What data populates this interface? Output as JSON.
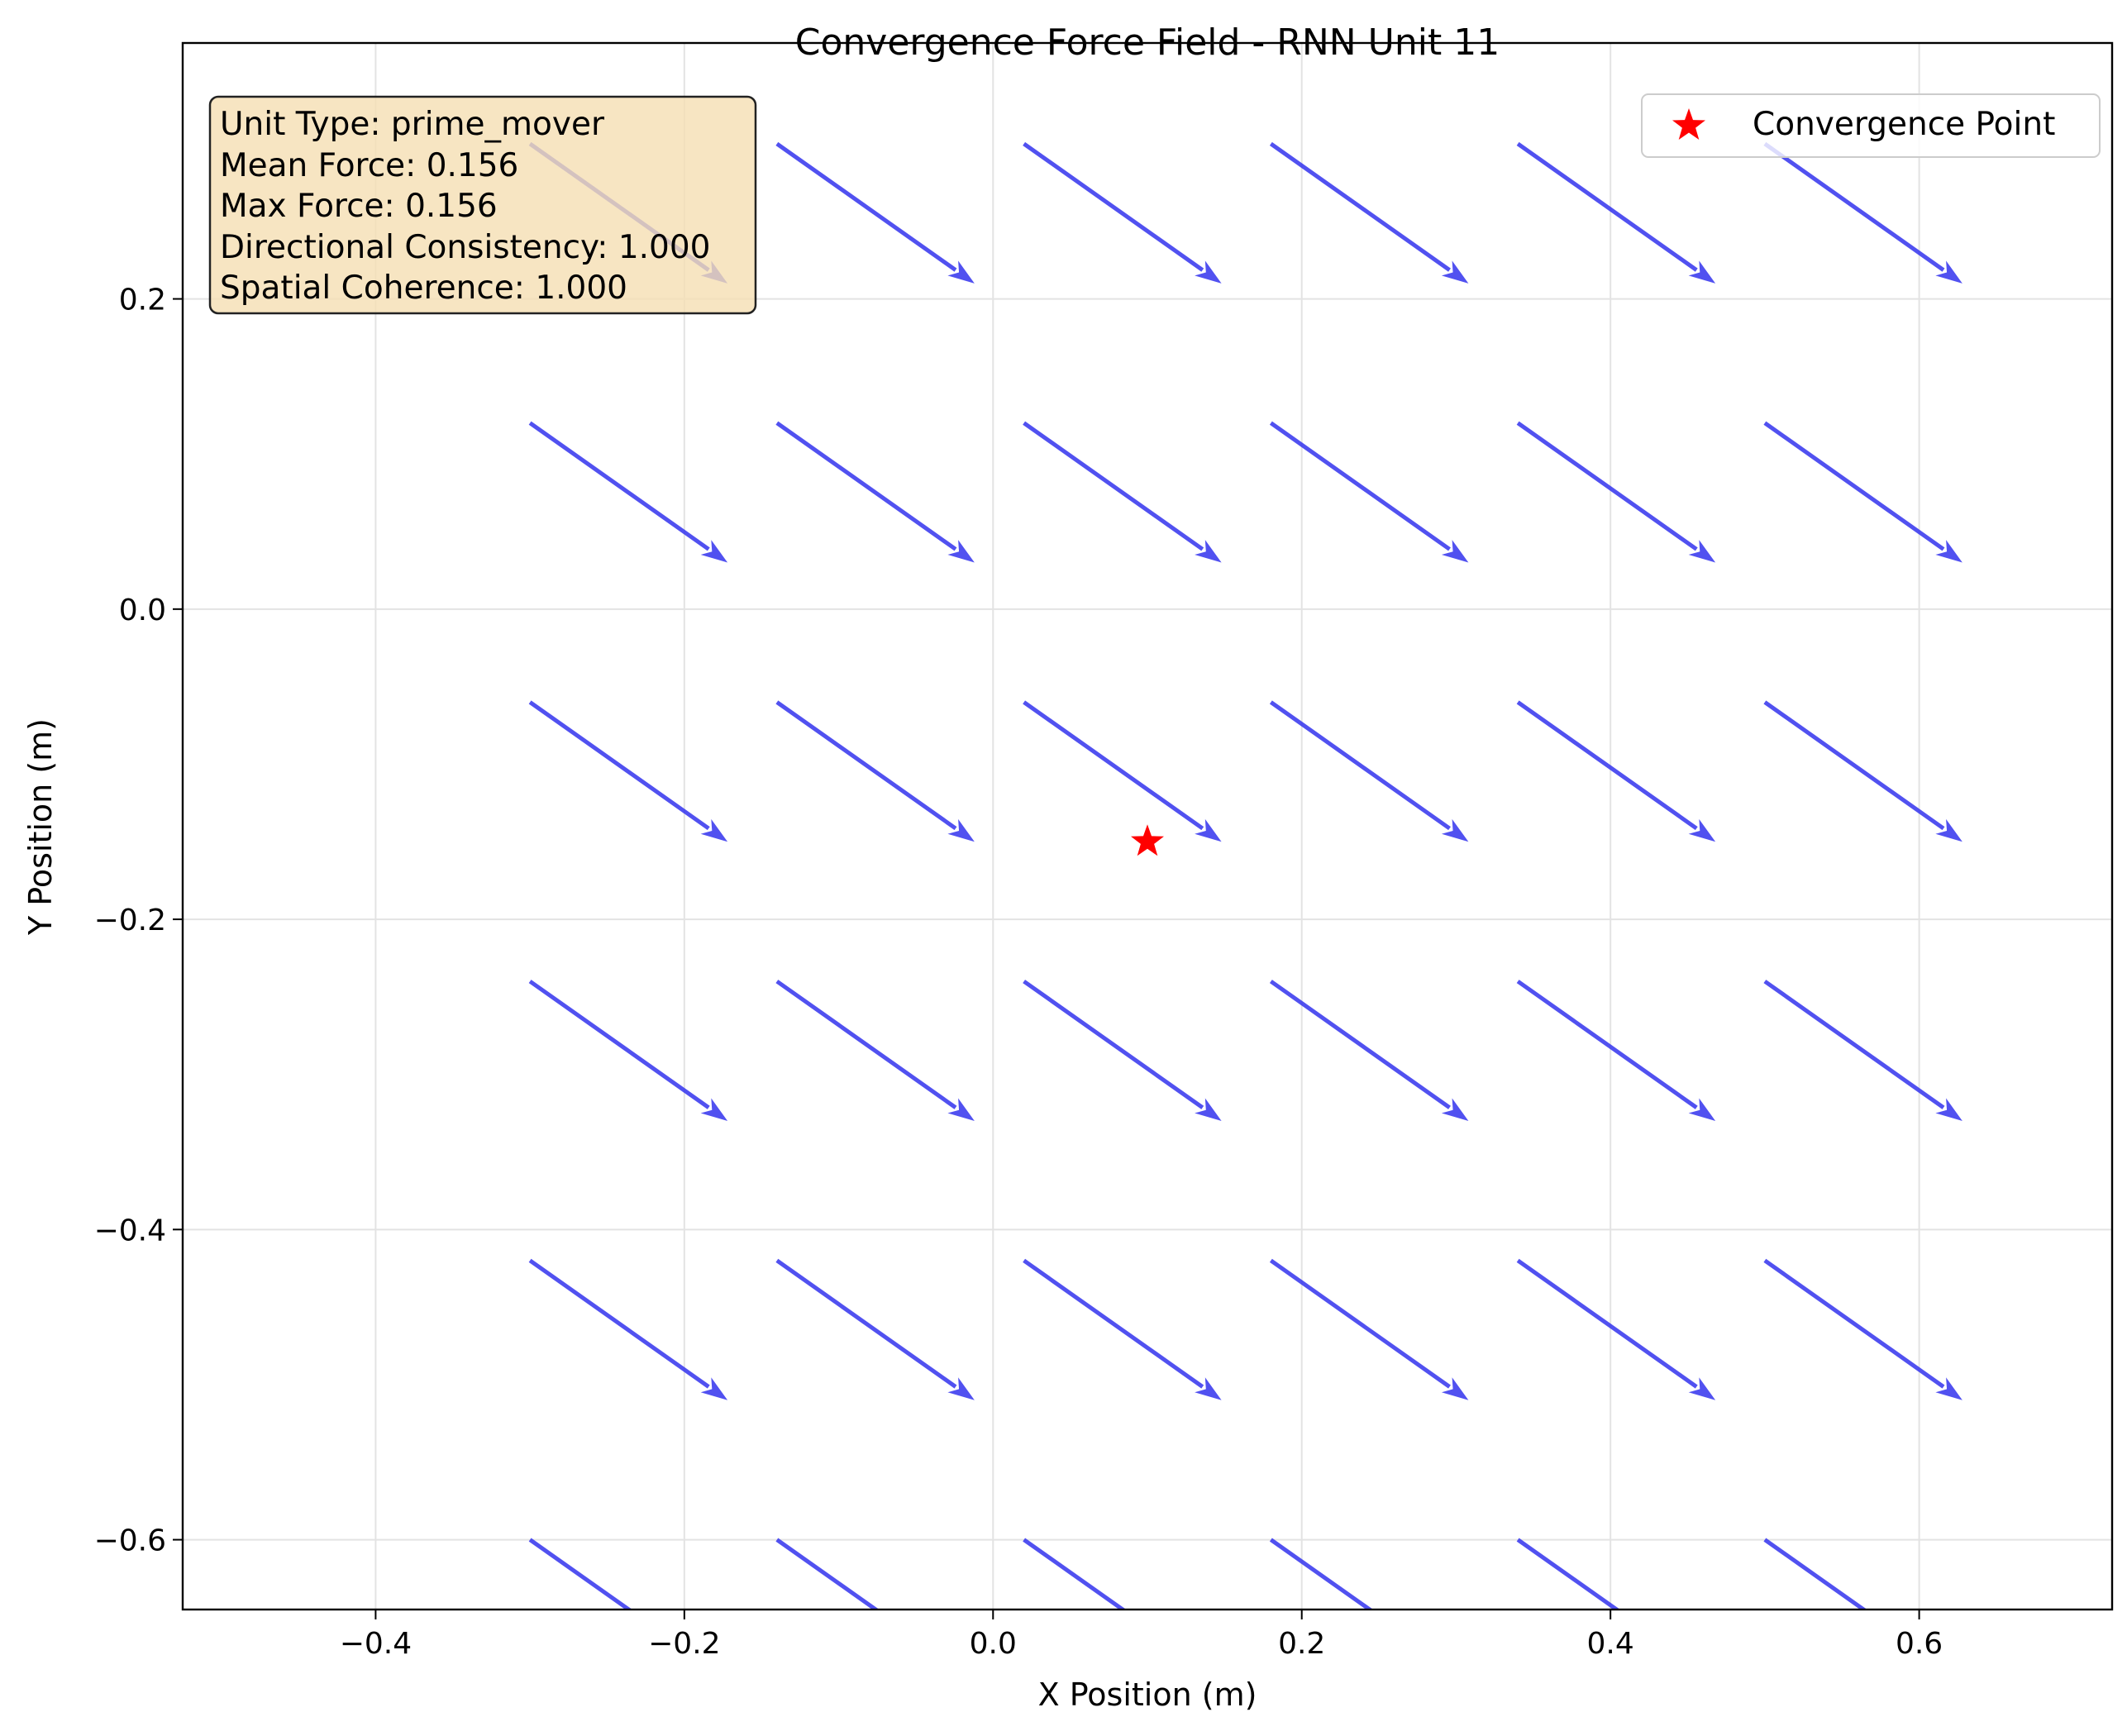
{
  "chart_data": {
    "type": "quiver",
    "title": "Convergence Force Field - RNN Unit 11",
    "xlabel": "X Position (m)",
    "ylabel": "Y Position (m)",
    "xlim": [
      -0.525,
      0.725
    ],
    "ylim": [
      -0.645,
      0.365
    ],
    "grid": true,
    "x_ticks": [
      -0.4,
      -0.2,
      0.0,
      0.2,
      0.4,
      0.6
    ],
    "y_ticks": [
      -0.6,
      -0.4,
      -0.2,
      0.0,
      0.2
    ],
    "x_tick_labels": [
      "−0.4",
      "−0.2",
      "0.0",
      "0.2",
      "0.4",
      "0.6"
    ],
    "y_tick_labels": [
      "−0.6",
      "−0.4",
      "−0.2",
      "0.0",
      "0.2"
    ],
    "grid_x": [
      -0.3,
      -0.14,
      0.02,
      0.18,
      0.34,
      0.5
    ],
    "grid_y": [
      0.3,
      0.12,
      -0.06,
      -0.24,
      -0.42,
      -0.6
    ],
    "vector": {
      "u": 0.128,
      "v": -0.09
    },
    "arrow_color": "#3333ee",
    "convergence_point": {
      "x": 0.1,
      "y": -0.15,
      "color": "#ff0000",
      "marker": "star"
    },
    "legend": {
      "label": "Convergence Point",
      "position": "upper-right"
    },
    "info_box": {
      "position": "upper-left",
      "background": "#f5deb3",
      "lines": [
        "Unit Type: prime_mover",
        "Mean Force: 0.156",
        "Max Force: 0.156",
        "Directional Consistency: 1.000",
        "Spatial Coherence: 1.000"
      ]
    }
  }
}
